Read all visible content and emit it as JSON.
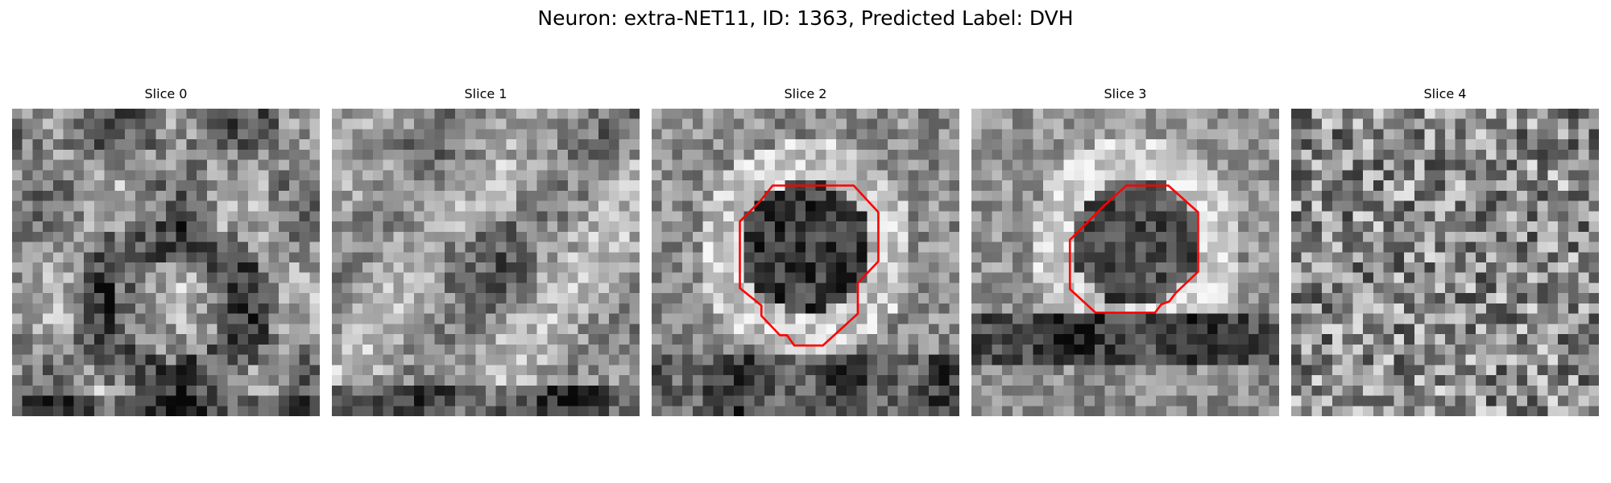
{
  "figure": {
    "title": "Neuron: extra-NET11, ID: 1363, Predicted Label: DVH"
  },
  "colors": {
    "contour": "#ff0000",
    "colormap": "gray"
  },
  "panels": [
    {
      "title": "Slice 0",
      "has_contour": false
    },
    {
      "title": "Slice 1",
      "has_contour": false
    },
    {
      "title": "Slice 2",
      "has_contour": true
    },
    {
      "title": "Slice 3",
      "has_contour": true
    },
    {
      "title": "Slice 4",
      "has_contour": false
    }
  ]
}
